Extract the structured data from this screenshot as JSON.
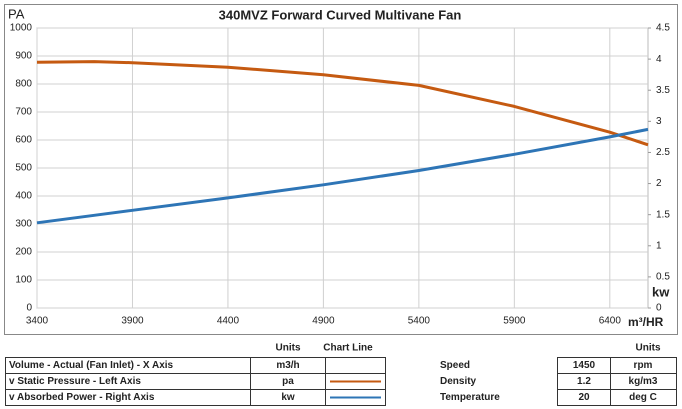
{
  "chart_data": {
    "type": "line",
    "title": "340MVZ Forward Curved Multivane Fan",
    "y_label": "PA",
    "y2_label": "kw",
    "x_label": "m³/HR",
    "x": [
      3400,
      3700,
      3900,
      4400,
      4900,
      5400,
      5900,
      6400,
      6600
    ],
    "series": [
      {
        "name": "v Static Pressure - Left Axis",
        "color": "#c55a11",
        "values": [
          878,
          880,
          876,
          860,
          833,
          795,
          720,
          628,
          583
        ]
      },
      {
        "name": "v Absorbed Power - Right Axis",
        "color": "#2e75b6",
        "axis": "y2",
        "values": [
          1.37,
          1.49,
          1.57,
          1.77,
          1.98,
          2.21,
          2.47,
          2.75,
          2.87
        ]
      }
    ],
    "xlim": [
      3400,
      6600
    ],
    "xticks": [
      3400,
      3900,
      4400,
      4900,
      5400,
      5900,
      6400
    ],
    "ylim": [
      0,
      1000
    ],
    "yticks": [
      0,
      100,
      200,
      300,
      400,
      500,
      600,
      700,
      800,
      900,
      1000
    ],
    "y2lim": [
      0,
      4.5
    ],
    "y2ticks": [
      0,
      0.5,
      1,
      1.5,
      2,
      2.5,
      3,
      3.5,
      4,
      4.5
    ],
    "grid": true
  },
  "legend_table": {
    "headers": [
      "Units",
      "Chart Line"
    ],
    "x_row": {
      "label": "Volume - Actual (Fan Inlet) - X Axis",
      "units": "m3/h"
    },
    "series_units": [
      "pa",
      "kw"
    ]
  },
  "conditions": {
    "header": "Units",
    "rows": [
      {
        "label": "Speed",
        "value": 1450,
        "units": "rpm"
      },
      {
        "label": "Density",
        "value": 1.2,
        "units": "kg/m3"
      },
      {
        "label": "Temperature",
        "value": 20,
        "units": "deg C"
      }
    ]
  }
}
